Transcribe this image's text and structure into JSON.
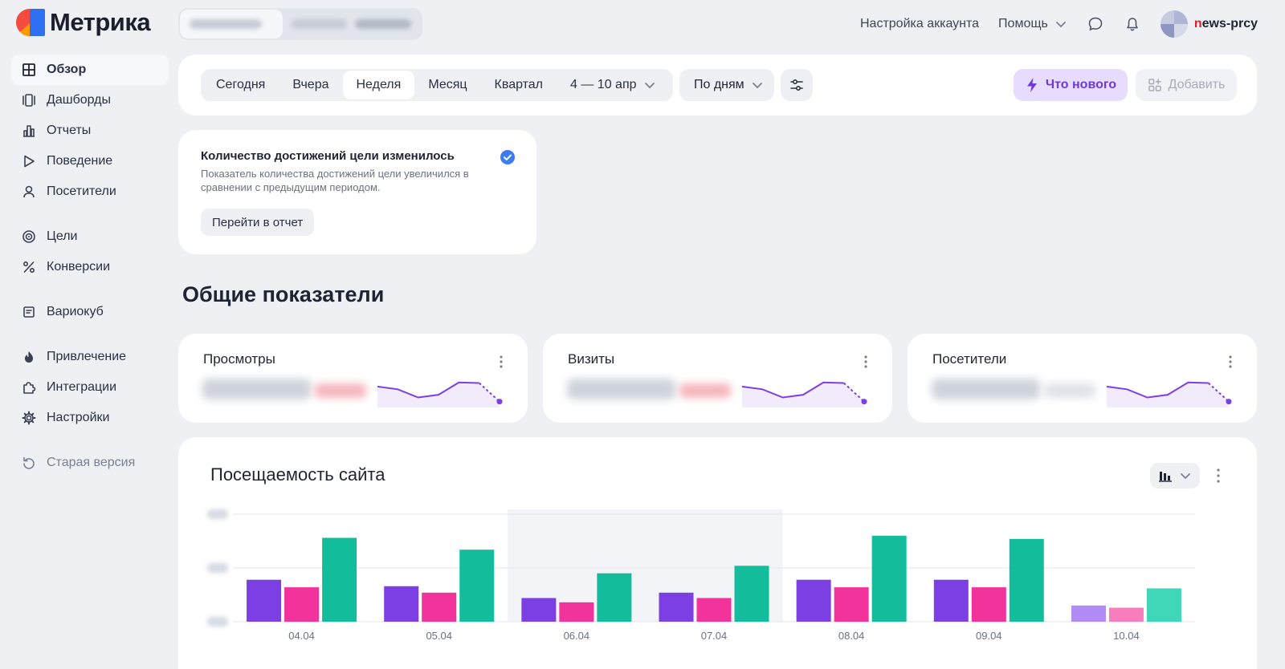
{
  "app": {
    "title": "Метрика"
  },
  "topnav": {
    "account_settings": "Настройка аккаунта",
    "help": "Помощь",
    "user_prefix": "n",
    "user_rest": "ews-prcy"
  },
  "sidebar": {
    "items": [
      {
        "label": "Обзор",
        "icon": "grid-icon"
      },
      {
        "label": "Дашборды",
        "icon": "dashboards-icon"
      },
      {
        "label": "Отчеты",
        "icon": "bar-chart-icon"
      },
      {
        "label": "Поведение",
        "icon": "play-icon"
      },
      {
        "label": "Посетители",
        "icon": "person-icon"
      },
      {
        "label": "Цели",
        "icon": "target-icon"
      },
      {
        "label": "Конверсии",
        "icon": "percent-icon"
      },
      {
        "label": "Вариокуб",
        "icon": "cube-icon"
      },
      {
        "label": "Привлечение",
        "icon": "flame-icon"
      },
      {
        "label": "Интеграции",
        "icon": "puzzle-icon"
      },
      {
        "label": "Настройки",
        "icon": "gear-icon"
      },
      {
        "label": "Старая версия",
        "icon": "undo-icon"
      }
    ]
  },
  "toolbar": {
    "periods": [
      "Сегодня",
      "Вчера",
      "Неделя",
      "Месяц",
      "Квартал"
    ],
    "selected_period": "Неделя",
    "date_range": "4 — 10 апр",
    "grouping": "По дням",
    "whats_new": "Что нового",
    "add": "Добавить"
  },
  "notice": {
    "title": "Количество достижений цели изменилось",
    "text": "Показатель количества достижений цели увеличился в сравнении с предыдущим периодом.",
    "button": "Перейти в отчет"
  },
  "section": {
    "title": "Общие показатели"
  },
  "metrics": [
    {
      "title": "Просмотры"
    },
    {
      "title": "Визиты"
    },
    {
      "title": "Посетители"
    }
  ],
  "sparkline": {
    "values": [
      0.65,
      0.55,
      0.25,
      0.35,
      0.8,
      0.78,
      0.1
    ],
    "dashed_from_index": 5
  },
  "colors": {
    "purple": "#7b3fe4",
    "pink": "#f2339b",
    "green": "#13bd9b",
    "accent": "#6e3bd8",
    "check": "#3d7bf5"
  },
  "traffic_chart": {
    "title": "Посещаемость сайта",
    "chart_data": {
      "type": "bar",
      "categories": [
        "04.04",
        "05.04",
        "06.04",
        "07.04",
        "08.04",
        "09.04",
        "10.04"
      ],
      "series": [
        {
          "values": [
            0.39,
            0.33,
            0.22,
            0.27,
            0.39,
            0.39,
            0.15
          ]
        },
        {
          "values": [
            0.32,
            0.27,
            0.18,
            0.22,
            0.32,
            0.32,
            0.13
          ]
        },
        {
          "values": [
            0.78,
            0.67,
            0.45,
            0.52,
            0.8,
            0.77,
            0.31
          ]
        }
      ],
      "ylim": [
        0,
        1
      ],
      "grid": true,
      "highlighted_categories": [
        "06.04",
        "07.04"
      ],
      "partial_category": "10.04"
    }
  }
}
